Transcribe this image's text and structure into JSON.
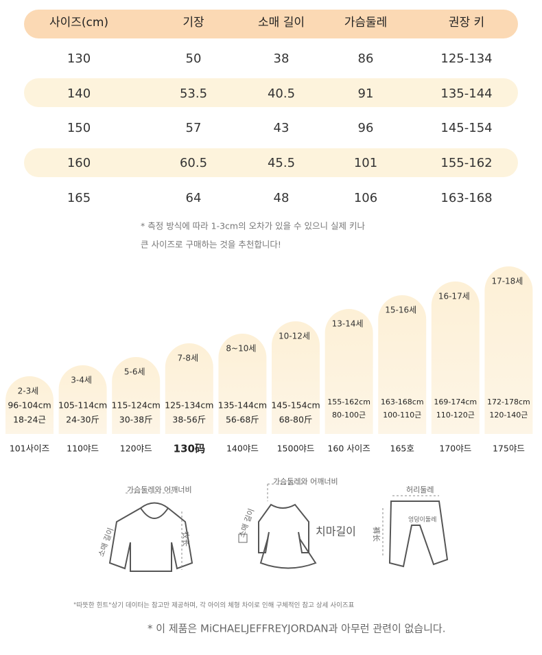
{
  "table": {
    "header": [
      "사이즈(cm)",
      "기장",
      "소매 길이",
      "가슴둘레",
      "권장 키"
    ],
    "rows": [
      [
        "130",
        "50",
        "38",
        "86",
        "125-134"
      ],
      [
        "140",
        "53.5",
        "40.5",
        "91",
        "135-144"
      ],
      [
        "150",
        "57",
        "43",
        "96",
        "145-154"
      ],
      [
        "160",
        "60.5",
        "45.5",
        "101",
        "155-162"
      ],
      [
        "165",
        "64",
        "48",
        "106",
        "163-168"
      ]
    ]
  },
  "notes": [
    "* 측정 방식에 따라 1-3cm의 오차가 있을 수 있으니 실제 키나",
    "큰 사이즈로 구매하는 것을 추천합니다!"
  ],
  "columns": [
    {
      "age": "2-3세",
      "height": "96-104cm",
      "weight": "18-24근",
      "label": "101사이즈"
    },
    {
      "age": "3-4세",
      "height": "105-114cm",
      "weight": "24-30斤",
      "label": "110야드"
    },
    {
      "age": "5-6세",
      "height": "115-124cm",
      "weight": "30-38斤",
      "label": "120야드"
    },
    {
      "age": "7-8세",
      "height": "125-134cm",
      "weight": "38-56斤",
      "label": "130码"
    },
    {
      "age": "8~10세",
      "height": "135-144cm",
      "weight": "56-68斤",
      "label": "140야드"
    },
    {
      "age": "10-12세",
      "height": "145-154cm",
      "weight": "68-80斤",
      "label": "1500야드"
    },
    {
      "age": "13-14세",
      "height": "155-162cm",
      "weight": "80-100근",
      "label": "160 사이즈"
    },
    {
      "age": "15-16세",
      "height": "163-168cm",
      "weight": "100-110근",
      "label": "165호"
    },
    {
      "age": "16-17세",
      "height": "169-174cm",
      "weight": "110-120근",
      "label": "170야드"
    },
    {
      "age": "17-18세",
      "height": "172-178cm",
      "weight": "120-140근",
      "label": "175야드"
    }
  ],
  "diagrams": [
    [
      "가슴둘레와 어깨너비",
      "소매 길이",
      "衣长"
    ],
    [
      "가슴둘레와 어깨너비",
      "소매 길이",
      "치마길이"
    ],
    [
      "허리둘레",
      "엉덩이둘레",
      "裤长"
    ]
  ],
  "footer": [
    "\"따뜻한 힌트\"상기 데이터는 참고만 제공하며, 각 아이의 체형 차이로 인해 구체적인 참고 상세 사이즈표",
    "* 이 제품은 MiCHAELJEFFREYJORDAN과 아무런 관련이 없습니다."
  ]
}
